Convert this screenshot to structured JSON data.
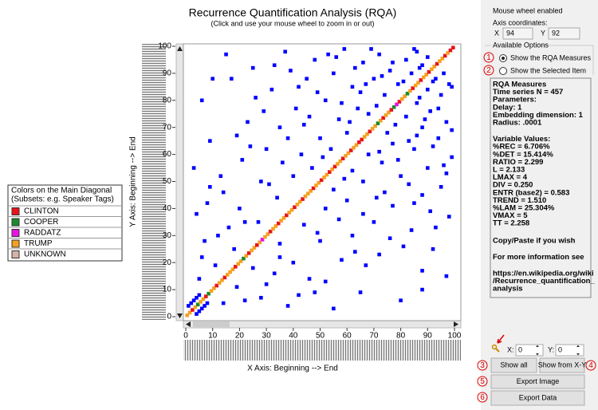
{
  "title": "Recurrence Quantification Analysis (RQA)",
  "subtitle": "(Click and use your mouse wheel to zoom in or out)",
  "plot": {
    "x_label": "X Axis: Beginning --> End",
    "y_label": "Y Axis: Beginning --> End",
    "xlim": [
      0,
      100
    ],
    "ylim": [
      0,
      100
    ],
    "xticks": [
      0,
      10,
      20,
      30,
      40,
      50,
      60,
      70,
      80,
      90,
      100
    ],
    "yticks": [
      0,
      10,
      20,
      30,
      40,
      50,
      60,
      70,
      80,
      90,
      100
    ],
    "point_color": "#0000ff",
    "diagonal": [
      3,
      3,
      0,
      3,
      1,
      3,
      3,
      0,
      1,
      3,
      3,
      0,
      3,
      3,
      0,
      3,
      3,
      3,
      0,
      3,
      3,
      1,
      3,
      0,
      3,
      3,
      0,
      3,
      2,
      3,
      3,
      0,
      3,
      3,
      0,
      3,
      3,
      0,
      3,
      3,
      0,
      3,
      3,
      0,
      3,
      3,
      3,
      0,
      3,
      3,
      0,
      3,
      3,
      0,
      3,
      0,
      3,
      3,
      0,
      3,
      3,
      0,
      3,
      3,
      0,
      0,
      3,
      3,
      0,
      3,
      3,
      1,
      3,
      0,
      3,
      3,
      0,
      1,
      2,
      0,
      3,
      3,
      1,
      3,
      0,
      3,
      3,
      0,
      3,
      3,
      0,
      3,
      3,
      0,
      3,
      3,
      0,
      3,
      0,
      0
    ],
    "points": [
      [
        2,
        5
      ],
      [
        3,
        6
      ],
      [
        4,
        7
      ],
      [
        5,
        8
      ],
      [
        1,
        4
      ],
      [
        5,
        14
      ],
      [
        6,
        22
      ],
      [
        4,
        38
      ],
      [
        8,
        42
      ],
      [
        3,
        55
      ],
      [
        12,
        30
      ],
      [
        14,
        46
      ],
      [
        9,
        65
      ],
      [
        6,
        80
      ],
      [
        10,
        88
      ],
      [
        15,
        97
      ],
      [
        18,
        25
      ],
      [
        20,
        40
      ],
      [
        21,
        58
      ],
      [
        23,
        72
      ],
      [
        25,
        92
      ],
      [
        27,
        35
      ],
      [
        28,
        50
      ],
      [
        30,
        62
      ],
      [
        32,
        84
      ],
      [
        34,
        44
      ],
      [
        35,
        70
      ],
      [
        37,
        98
      ],
      [
        40,
        52
      ],
      [
        41,
        77
      ],
      [
        43,
        60
      ],
      [
        45,
        88
      ],
      [
        47,
        55
      ],
      [
        48,
        95
      ],
      [
        50,
        66
      ],
      [
        52,
        80
      ],
      [
        54,
        62
      ],
      [
        55,
        90
      ],
      [
        57,
        73
      ],
      [
        59,
        99
      ],
      [
        60,
        68
      ],
      [
        62,
        85
      ],
      [
        64,
        77
      ],
      [
        66,
        94
      ],
      [
        68,
        75
      ],
      [
        70,
        88
      ],
      [
        72,
        97
      ],
      [
        74,
        82
      ],
      [
        76,
        91
      ],
      [
        79,
        86
      ],
      [
        82,
        95
      ],
      [
        84,
        90
      ],
      [
        86,
        98
      ],
      [
        88,
        93
      ],
      [
        90,
        96
      ],
      [
        16,
        33
      ],
      [
        19,
        67
      ],
      [
        26,
        81
      ],
      [
        31,
        49
      ],
      [
        36,
        57
      ],
      [
        39,
        91
      ],
      [
        44,
        71
      ],
      [
        49,
        83
      ],
      [
        53,
        97
      ],
      [
        58,
        79
      ],
      [
        63,
        92
      ],
      [
        67,
        86
      ],
      [
        71,
        78
      ],
      [
        11,
        19
      ],
      [
        13,
        52
      ],
      [
        17,
        88
      ],
      [
        22,
        35
      ],
      [
        24,
        63
      ],
      [
        29,
        76
      ],
      [
        33,
        93
      ],
      [
        38,
        66
      ],
      [
        42,
        85
      ],
      [
        46,
        74
      ],
      [
        51,
        59
      ],
      [
        56,
        96
      ],
      [
        61,
        72
      ],
      [
        65,
        83
      ],
      [
        69,
        99
      ],
      [
        73,
        89
      ],
      [
        77,
        94
      ],
      [
        81,
        87
      ],
      [
        85,
        99
      ],
      [
        87,
        92
      ],
      [
        7,
        28
      ],
      [
        9,
        48
      ]
    ]
  },
  "legend": {
    "title": "Colors on the Main Diagonal",
    "subtitle": "(Subsets: e.g. Speaker Tags)",
    "items": [
      {
        "label": "CLINTON",
        "color": "#e8141c"
      },
      {
        "label": "COOPER",
        "color": "#1b8a2b"
      },
      {
        "label": "RADDATZ",
        "color": "#e812e8"
      },
      {
        "label": "TRUMP",
        "color": "#f5a020"
      },
      {
        "label": "UNKNOWN",
        "color": "#d4b4a8"
      }
    ]
  },
  "panel": {
    "mouse_note": "Mouse wheel enabled",
    "coords_label": "Axis coordinates:",
    "x_label": "X",
    "x_value": "94",
    "y_label": "Y",
    "y_value": "92",
    "options_title": "Available Options",
    "option_measures": "Show the RQA Measures",
    "option_selected": "Show the Selected Item",
    "measures_blocks": [
      [
        "RQA Measures",
        "Time series N =  457",
        "Parameters:",
        "Delay: 1",
        "Embedding dimension: 1",
        "Radius: .0001"
      ],
      [
        "Variable Values:",
        "%REC = 6.706%",
        "%DET = 15.414%",
        "RATIO = 2.299",
        "L = 2.133",
        "LMAX = 4",
        "DIV = 0.250",
        "ENTR (base2) = 0.583",
        "TREND = 1.510",
        "%LAM = 25.304%",
        "VMAX = 5",
        "TT = 2.258"
      ],
      [
        "Copy/Paste if you wish"
      ],
      [
        "For more information see"
      ],
      [
        "https://en.wikipedia.org/wiki",
        "/Recurrence_quantification_",
        "analysis"
      ]
    ],
    "zoom_x_label": "X:",
    "zoom_x_value": "0",
    "zoom_y_label": "Y:",
    "zoom_y_value": "0",
    "show_all": "Show all",
    "show_from_xy": "Show from X-Y",
    "export_image": "Export Image",
    "export_data": "Export Data"
  },
  "annotations": [
    "1",
    "2",
    "3",
    "4",
    "5",
    "6"
  ]
}
